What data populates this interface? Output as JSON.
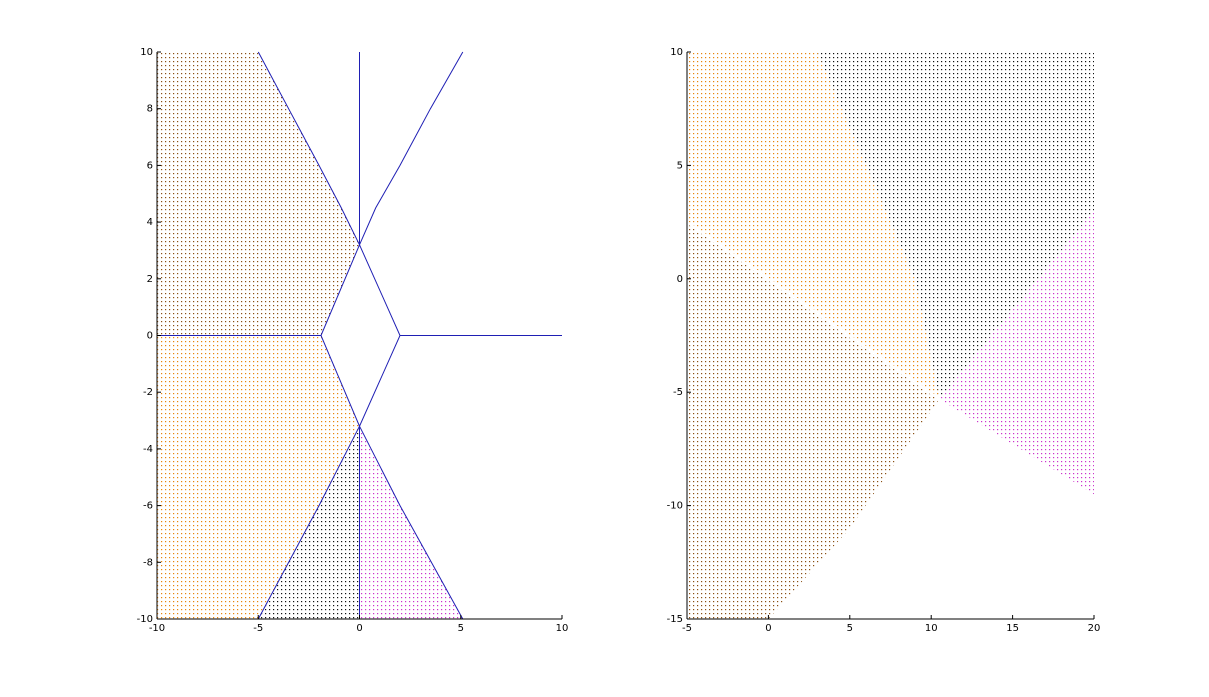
{
  "chart_data": [
    {
      "type": "scatter",
      "xlim": [
        -10,
        10
      ],
      "ylim": [
        -10,
        10
      ],
      "xticks": [
        -10,
        -5,
        0,
        5,
        10
      ],
      "yticks": [
        -10,
        -8,
        -6,
        -4,
        -2,
        0,
        2,
        4,
        6,
        8,
        10
      ],
      "series": [
        {
          "mode": "dots",
          "color": "#8a4f12",
          "x": [
            -10,
            -5,
            -3.5,
            -2,
            -0.9,
            0,
            -1.9,
            -10
          ],
          "y": [
            10,
            10,
            8,
            6,
            4.5,
            3.2,
            0,
            0
          ]
        },
        {
          "mode": "dots",
          "color": "#e8850c",
          "x": [
            -10,
            -1.9,
            0,
            -2,
            -5,
            -10
          ],
          "y": [
            0,
            0,
            -3.2,
            -6,
            -10,
            -10
          ]
        },
        {
          "mode": "dots",
          "color": "#111111",
          "x": [
            0,
            -2,
            -5,
            0
          ],
          "y": [
            -3.2,
            -6,
            -10,
            -10
          ]
        },
        {
          "mode": "dots",
          "color": "#cc33cc",
          "x": [
            0,
            0,
            5.1,
            2
          ],
          "y": [
            -3.2,
            -10,
            -10,
            -6
          ]
        },
        {
          "mode": "line",
          "color": "#1f1fb4",
          "x": [
            0,
            0,
            null,
            0,
            0,
            null,
            -10,
            -1.9,
            null,
            2,
            10,
            null,
            -5,
            -3.5,
            -2,
            -0.9,
            0,
            null,
            5.1,
            3.5,
            2,
            0.8,
            0,
            null,
            0,
            -1.9,
            0,
            2,
            0,
            null,
            0,
            -2,
            -5,
            null,
            0,
            2,
            5.1
          ],
          "y": [
            10,
            3.2,
            null,
            -3.2,
            -10,
            null,
            0,
            0,
            null,
            0,
            0,
            null,
            10,
            8,
            6,
            4.5,
            3.2,
            null,
            10,
            8,
            6,
            4.5,
            3.2,
            null,
            3.2,
            0,
            -3.2,
            0,
            3.2,
            null,
            -3.2,
            -6,
            -10,
            null,
            -3.2,
            -6,
            -10
          ]
        }
      ]
    },
    {
      "type": "scatter",
      "xlim": [
        -5,
        20
      ],
      "ylim": [
        -15,
        10
      ],
      "xticks": [
        -5,
        0,
        5,
        10,
        15,
        20
      ],
      "yticks": [
        -15,
        -10,
        -5,
        0,
        5,
        10
      ],
      "series": [
        {
          "mode": "dots",
          "color": "#111111",
          "x": [
            3,
            20,
            20,
            10.5,
            9,
            6
          ],
          "y": [
            10,
            10,
            3,
            -5.3,
            0,
            5
          ]
        },
        {
          "mode": "dots",
          "color": "#cc33cc",
          "x": [
            20,
            20,
            10.5
          ],
          "y": [
            3,
            -9.5,
            -5.3
          ]
        },
        {
          "mode": "dots",
          "color": "#e8850c",
          "x": [
            -5,
            3,
            6,
            9,
            10.5,
            -5
          ],
          "y": [
            10,
            10,
            5,
            0,
            -5.3,
            2.5
          ]
        },
        {
          "mode": "dots",
          "color": "#8a4f12",
          "x": [
            -5,
            10.5,
            5,
            0,
            -5
          ],
          "y": [
            2.5,
            -5.3,
            -11,
            -15,
            -15
          ]
        },
        {
          "mode": "line",
          "color": "#ffffff",
          "x": [
            -5,
            10.5
          ],
          "y": [
            2.5,
            -5.3
          ]
        }
      ]
    }
  ]
}
